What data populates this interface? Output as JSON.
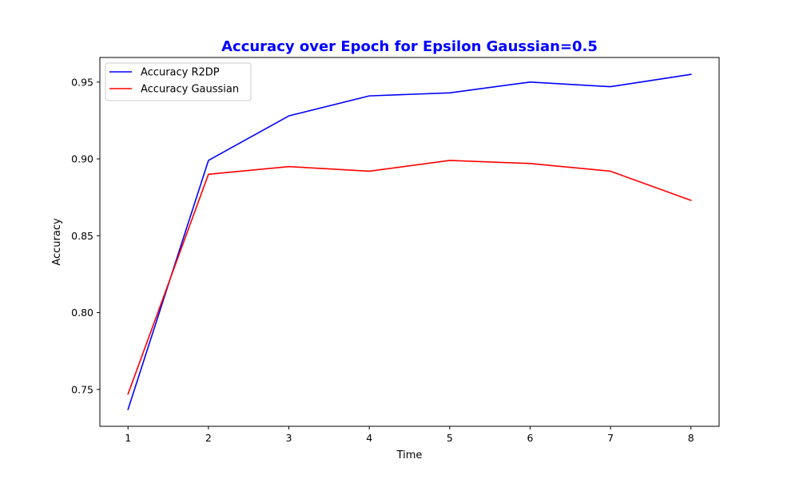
{
  "chart_data": {
    "type": "line",
    "title": "Accuracy over Epoch for Epsilon Gaussian=0.5",
    "title_color": "#0000ff",
    "xlabel": "Time",
    "ylabel": "Accuracy",
    "x": [
      1,
      2,
      3,
      4,
      5,
      6,
      7,
      8
    ],
    "x_ticks": [
      "1",
      "2",
      "3",
      "4",
      "5",
      "6",
      "7",
      "8"
    ],
    "y_ticks": [
      "0.75",
      "0.80",
      "0.85",
      "0.90",
      "0.95"
    ],
    "xlim": [
      0.65,
      8.35
    ],
    "ylim": [
      0.726,
      0.966
    ],
    "grid": false,
    "legend_position": "top-left",
    "series": [
      {
        "name": "Accuracy R2DP",
        "color": "#0000ff",
        "values": [
          0.737,
          0.899,
          0.928,
          0.941,
          0.943,
          0.95,
          0.947,
          0.955
        ]
      },
      {
        "name": "Accuracy Gaussian",
        "color": "#ff0000",
        "values": [
          0.747,
          0.89,
          0.895,
          0.892,
          0.899,
          0.897,
          0.892,
          0.873
        ]
      }
    ]
  }
}
